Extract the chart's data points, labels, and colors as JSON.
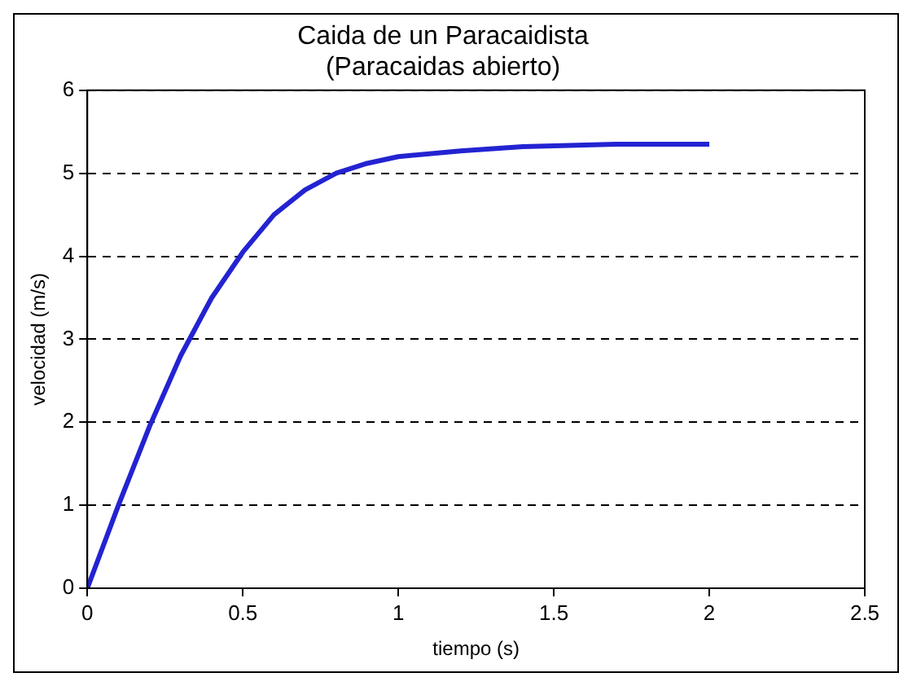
{
  "chart_data": {
    "type": "line",
    "title": "Caida de un Paracaidista",
    "subtitle": "(Paracaidas abierto)",
    "xlabel": "tiempo (s)",
    "ylabel": "velocidad (m/s)",
    "x": [
      0,
      0.1,
      0.2,
      0.3,
      0.4,
      0.5,
      0.6,
      0.7,
      0.8,
      0.9,
      1.0,
      1.2,
      1.4,
      1.7,
      2.0
    ],
    "series": [
      {
        "color": "#2323d2",
        "values": [
          0,
          1.0,
          1.95,
          2.8,
          3.5,
          4.05,
          4.5,
          4.8,
          5.0,
          5.12,
          5.2,
          5.27,
          5.32,
          5.35,
          5.35
        ]
      }
    ],
    "xlim": [
      0,
      2.5
    ],
    "xticks": [
      0,
      0.5,
      1,
      1.5,
      2,
      2.5
    ],
    "ylim": [
      0,
      6
    ],
    "yticks": [
      0,
      1,
      2,
      3,
      4,
      5,
      6
    ],
    "grid": "y",
    "line_style": "solid",
    "marker": "none",
    "legend": false
  }
}
